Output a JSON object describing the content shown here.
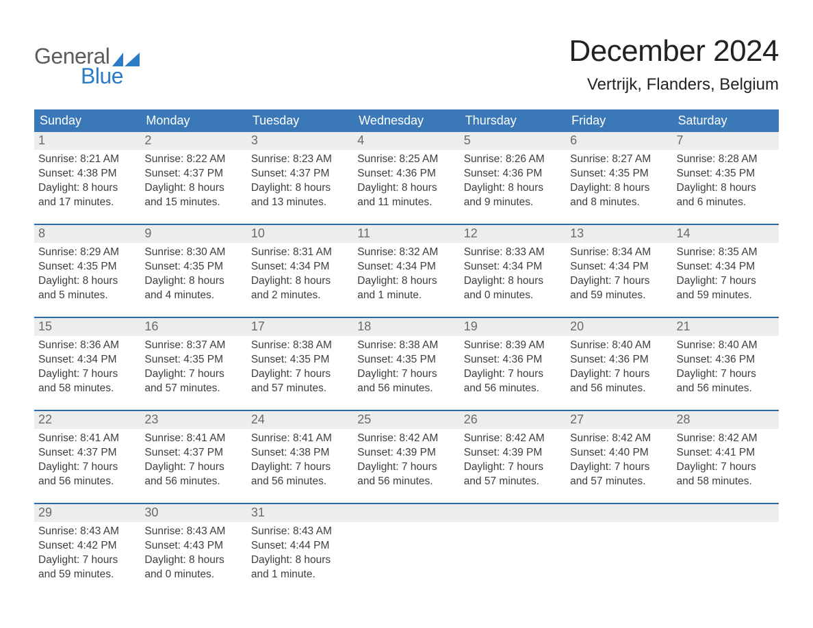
{
  "logo": {
    "word1": "General",
    "word2": "Blue",
    "flag_color": "#2a7cc7",
    "gray_color": "#5c5c5c"
  },
  "title": {
    "month_year": "December 2024",
    "location": "Vertrijk, Flanders, Belgium"
  },
  "colors": {
    "header_bg": "#3b78b8",
    "divider": "#2a6bb0",
    "gray_band": "#eceded",
    "text": "#3d3d3d"
  },
  "weekdays": [
    "Sunday",
    "Monday",
    "Tuesday",
    "Wednesday",
    "Thursday",
    "Friday",
    "Saturday"
  ],
  "weeks": [
    [
      {
        "day": "1",
        "sunrise": "Sunrise: 8:21 AM",
        "sunset": "Sunset: 4:38 PM",
        "daylight": "Daylight: 8 hours and 17 minutes."
      },
      {
        "day": "2",
        "sunrise": "Sunrise: 8:22 AM",
        "sunset": "Sunset: 4:37 PM",
        "daylight": "Daylight: 8 hours and 15 minutes."
      },
      {
        "day": "3",
        "sunrise": "Sunrise: 8:23 AM",
        "sunset": "Sunset: 4:37 PM",
        "daylight": "Daylight: 8 hours and 13 minutes."
      },
      {
        "day": "4",
        "sunrise": "Sunrise: 8:25 AM",
        "sunset": "Sunset: 4:36 PM",
        "daylight": "Daylight: 8 hours and 11 minutes."
      },
      {
        "day": "5",
        "sunrise": "Sunrise: 8:26 AM",
        "sunset": "Sunset: 4:36 PM",
        "daylight": "Daylight: 8 hours and 9 minutes."
      },
      {
        "day": "6",
        "sunrise": "Sunrise: 8:27 AM",
        "sunset": "Sunset: 4:35 PM",
        "daylight": "Daylight: 8 hours and 8 minutes."
      },
      {
        "day": "7",
        "sunrise": "Sunrise: 8:28 AM",
        "sunset": "Sunset: 4:35 PM",
        "daylight": "Daylight: 8 hours and 6 minutes."
      }
    ],
    [
      {
        "day": "8",
        "sunrise": "Sunrise: 8:29 AM",
        "sunset": "Sunset: 4:35 PM",
        "daylight": "Daylight: 8 hours and 5 minutes."
      },
      {
        "day": "9",
        "sunrise": "Sunrise: 8:30 AM",
        "sunset": "Sunset: 4:35 PM",
        "daylight": "Daylight: 8 hours and 4 minutes."
      },
      {
        "day": "10",
        "sunrise": "Sunrise: 8:31 AM",
        "sunset": "Sunset: 4:34 PM",
        "daylight": "Daylight: 8 hours and 2 minutes."
      },
      {
        "day": "11",
        "sunrise": "Sunrise: 8:32 AM",
        "sunset": "Sunset: 4:34 PM",
        "daylight": "Daylight: 8 hours and 1 minute."
      },
      {
        "day": "12",
        "sunrise": "Sunrise: 8:33 AM",
        "sunset": "Sunset: 4:34 PM",
        "daylight": "Daylight: 8 hours and 0 minutes."
      },
      {
        "day": "13",
        "sunrise": "Sunrise: 8:34 AM",
        "sunset": "Sunset: 4:34 PM",
        "daylight": "Daylight: 7 hours and 59 minutes."
      },
      {
        "day": "14",
        "sunrise": "Sunrise: 8:35 AM",
        "sunset": "Sunset: 4:34 PM",
        "daylight": "Daylight: 7 hours and 59 minutes."
      }
    ],
    [
      {
        "day": "15",
        "sunrise": "Sunrise: 8:36 AM",
        "sunset": "Sunset: 4:34 PM",
        "daylight": "Daylight: 7 hours and 58 minutes."
      },
      {
        "day": "16",
        "sunrise": "Sunrise: 8:37 AM",
        "sunset": "Sunset: 4:35 PM",
        "daylight": "Daylight: 7 hours and 57 minutes."
      },
      {
        "day": "17",
        "sunrise": "Sunrise: 8:38 AM",
        "sunset": "Sunset: 4:35 PM",
        "daylight": "Daylight: 7 hours and 57 minutes."
      },
      {
        "day": "18",
        "sunrise": "Sunrise: 8:38 AM",
        "sunset": "Sunset: 4:35 PM",
        "daylight": "Daylight: 7 hours and 56 minutes."
      },
      {
        "day": "19",
        "sunrise": "Sunrise: 8:39 AM",
        "sunset": "Sunset: 4:36 PM",
        "daylight": "Daylight: 7 hours and 56 minutes."
      },
      {
        "day": "20",
        "sunrise": "Sunrise: 8:40 AM",
        "sunset": "Sunset: 4:36 PM",
        "daylight": "Daylight: 7 hours and 56 minutes."
      },
      {
        "day": "21",
        "sunrise": "Sunrise: 8:40 AM",
        "sunset": "Sunset: 4:36 PM",
        "daylight": "Daylight: 7 hours and 56 minutes."
      }
    ],
    [
      {
        "day": "22",
        "sunrise": "Sunrise: 8:41 AM",
        "sunset": "Sunset: 4:37 PM",
        "daylight": "Daylight: 7 hours and 56 minutes."
      },
      {
        "day": "23",
        "sunrise": "Sunrise: 8:41 AM",
        "sunset": "Sunset: 4:37 PM",
        "daylight": "Daylight: 7 hours and 56 minutes."
      },
      {
        "day": "24",
        "sunrise": "Sunrise: 8:41 AM",
        "sunset": "Sunset: 4:38 PM",
        "daylight": "Daylight: 7 hours and 56 minutes."
      },
      {
        "day": "25",
        "sunrise": "Sunrise: 8:42 AM",
        "sunset": "Sunset: 4:39 PM",
        "daylight": "Daylight: 7 hours and 56 minutes."
      },
      {
        "day": "26",
        "sunrise": "Sunrise: 8:42 AM",
        "sunset": "Sunset: 4:39 PM",
        "daylight": "Daylight: 7 hours and 57 minutes."
      },
      {
        "day": "27",
        "sunrise": "Sunrise: 8:42 AM",
        "sunset": "Sunset: 4:40 PM",
        "daylight": "Daylight: 7 hours and 57 minutes."
      },
      {
        "day": "28",
        "sunrise": "Sunrise: 8:42 AM",
        "sunset": "Sunset: 4:41 PM",
        "daylight": "Daylight: 7 hours and 58 minutes."
      }
    ],
    [
      {
        "day": "29",
        "sunrise": "Sunrise: 8:43 AM",
        "sunset": "Sunset: 4:42 PM",
        "daylight": "Daylight: 7 hours and 59 minutes."
      },
      {
        "day": "30",
        "sunrise": "Sunrise: 8:43 AM",
        "sunset": "Sunset: 4:43 PM",
        "daylight": "Daylight: 8 hours and 0 minutes."
      },
      {
        "day": "31",
        "sunrise": "Sunrise: 8:43 AM",
        "sunset": "Sunset: 4:44 PM",
        "daylight": "Daylight: 8 hours and 1 minute."
      },
      {
        "empty": true
      },
      {
        "empty": true
      },
      {
        "empty": true
      },
      {
        "empty": true
      }
    ]
  ]
}
